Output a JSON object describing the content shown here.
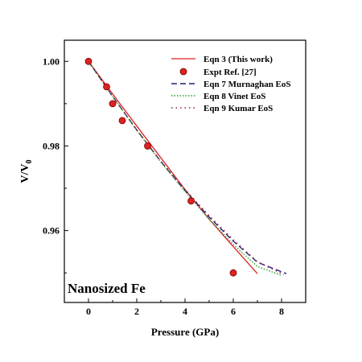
{
  "chart_data": {
    "type": "line",
    "xlabel": "Pressure (GPa)",
    "ylabel_main": "V/V",
    "ylabel_sub": "0",
    "xlim": [
      -1,
      9
    ],
    "ylim": [
      0.943,
      1.005
    ],
    "xticks": [
      0,
      2,
      4,
      6,
      8
    ],
    "yticks": [
      0.96,
      0.98,
      1.0
    ],
    "ytick_labels": [
      "0.96",
      "0.98",
      "1.00"
    ],
    "annotation": "Nanosized Fe",
    "legend_position": "top-right",
    "series": [
      {
        "name": "Eqn 3 (This work)",
        "style": "solid",
        "color": "#dd2222",
        "x": [
          0,
          1,
          2,
          3,
          4,
          5,
          6,
          7
        ],
        "y": [
          1.0,
          0.9923,
          0.9847,
          0.9772,
          0.9697,
          0.9627,
          0.9562,
          0.9498
        ]
      },
      {
        "name": "Expt  Ref. [27]",
        "style": "marker",
        "color": "#dd2222",
        "x": [
          0,
          0.75,
          1.0,
          1.4,
          2.45,
          4.25,
          6.0
        ],
        "y": [
          1.0,
          0.994,
          0.99,
          0.986,
          0.98,
          0.967,
          0.95
        ]
      },
      {
        "name": "Eqn 7 Murnaghan EoS",
        "style": "dashed",
        "color": "#1f1f7a",
        "x": [
          0,
          1,
          2,
          3,
          4,
          5,
          6,
          7,
          8.2
        ],
        "y": [
          1.0,
          0.9917,
          0.9838,
          0.9763,
          0.9695,
          0.9632,
          0.9575,
          0.9525,
          0.9498
        ]
      },
      {
        "name": "Eqn 8 Vinet EoS",
        "style": "dotted",
        "color": "#2a9a2a",
        "x": [
          0,
          1,
          2,
          3,
          4,
          5,
          6,
          7,
          8.0
        ],
        "y": [
          1.0,
          0.9917,
          0.9837,
          0.9762,
          0.9692,
          0.9627,
          0.9567,
          0.9515,
          0.9494
        ]
      },
      {
        "name": "Eqn 9 Kumar EoS",
        "style": "dotted-sparse",
        "color": "#8a1a4a",
        "x": [
          0,
          1,
          2,
          3,
          4,
          5,
          6,
          7,
          8.1
        ],
        "y": [
          1.0,
          0.9917,
          0.9838,
          0.9764,
          0.9697,
          0.9635,
          0.9578,
          0.9526,
          0.9496
        ]
      }
    ]
  }
}
